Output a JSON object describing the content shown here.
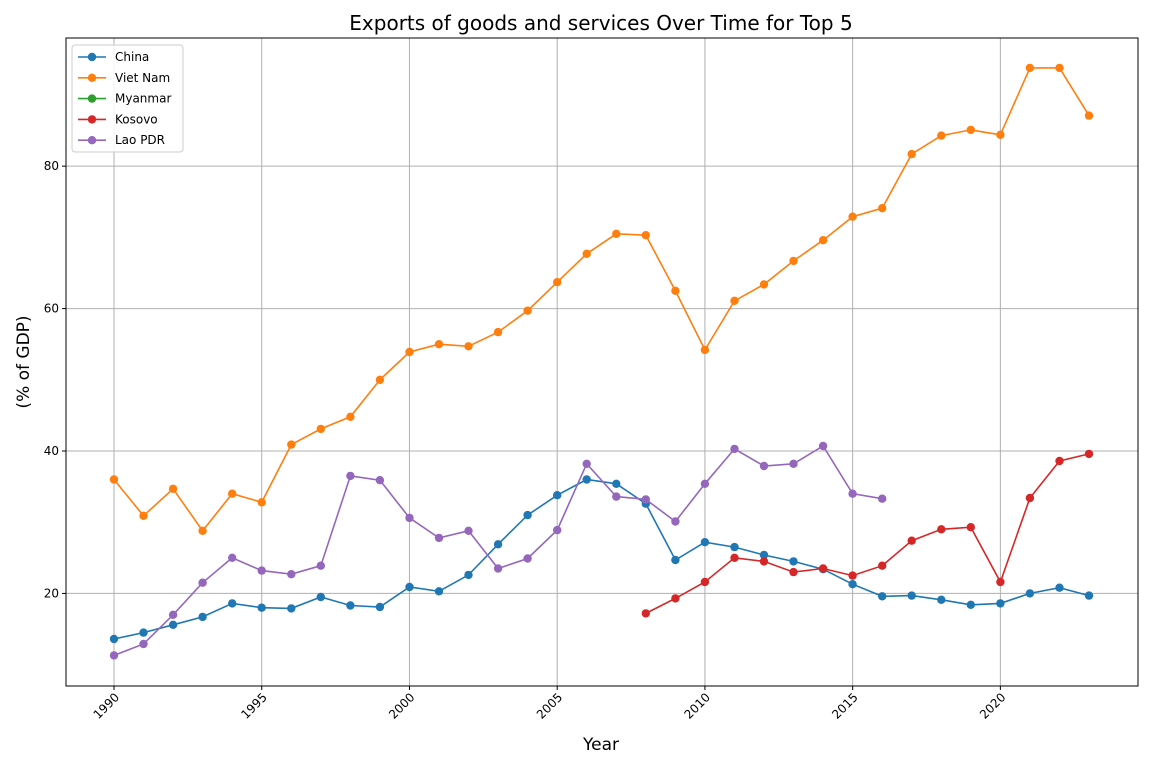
{
  "chart_data": {
    "type": "line",
    "title": "Exports of goods and services Over Time for Top 5",
    "xlabel": "Year",
    "ylabel": "(% of GDP)",
    "xlim": [
      1990,
      2023
    ],
    "ylim": [
      7,
      98
    ],
    "xticks": [
      1990,
      1995,
      2000,
      2005,
      2010,
      2015,
      2020
    ],
    "yticks": [
      20,
      40,
      60,
      80
    ],
    "grid": true,
    "legend_position": "top-left",
    "series": [
      {
        "name": "China",
        "color": "#1f77b4",
        "points": [
          [
            1990,
            13.6
          ],
          [
            1991,
            14.5
          ],
          [
            1992,
            15.6
          ],
          [
            1993,
            16.7
          ],
          [
            1994,
            18.6
          ],
          [
            1995,
            18.0
          ],
          [
            1996,
            17.9
          ],
          [
            1997,
            19.5
          ],
          [
            1998,
            18.3
          ],
          [
            1999,
            18.1
          ],
          [
            2000,
            20.9
          ],
          [
            2001,
            20.3
          ],
          [
            2002,
            22.6
          ],
          [
            2003,
            26.9
          ],
          [
            2004,
            31.0
          ],
          [
            2005,
            33.8
          ],
          [
            2006,
            36.0
          ],
          [
            2007,
            35.4
          ],
          [
            2008,
            32.6
          ],
          [
            2009,
            24.7
          ],
          [
            2010,
            27.2
          ],
          [
            2011,
            26.5
          ],
          [
            2012,
            25.4
          ],
          [
            2013,
            24.5
          ],
          [
            2014,
            23.4
          ],
          [
            2015,
            21.3
          ],
          [
            2016,
            19.6
          ],
          [
            2017,
            19.7
          ],
          [
            2018,
            19.1
          ],
          [
            2019,
            18.4
          ],
          [
            2020,
            18.6
          ],
          [
            2021,
            20.0
          ],
          [
            2022,
            20.8
          ],
          [
            2023,
            19.7
          ]
        ]
      },
      {
        "name": "Viet Nam",
        "color": "#ff7f0e",
        "points": [
          [
            1990,
            36.0
          ],
          [
            1991,
            30.9
          ],
          [
            1992,
            34.7
          ],
          [
            1993,
            28.8
          ],
          [
            1994,
            34.0
          ],
          [
            1995,
            32.8
          ],
          [
            1996,
            40.9
          ],
          [
            1997,
            43.1
          ],
          [
            1998,
            44.8
          ],
          [
            1999,
            50.0
          ],
          [
            2000,
            53.9
          ],
          [
            2001,
            55.0
          ],
          [
            2002,
            54.7
          ],
          [
            2003,
            56.7
          ],
          [
            2004,
            59.7
          ],
          [
            2005,
            63.7
          ],
          [
            2006,
            67.7
          ],
          [
            2007,
            70.5
          ],
          [
            2008,
            70.3
          ],
          [
            2009,
            62.5
          ],
          [
            2010,
            54.2
          ],
          [
            2011,
            61.1
          ],
          [
            2012,
            63.4
          ],
          [
            2013,
            66.7
          ],
          [
            2014,
            69.6
          ],
          [
            2015,
            72.9
          ],
          [
            2016,
            74.1
          ],
          [
            2017,
            81.7
          ],
          [
            2018,
            84.3
          ],
          [
            2019,
            85.1
          ],
          [
            2020,
            84.4
          ],
          [
            2021,
            93.8
          ],
          [
            2022,
            93.8
          ],
          [
            2023,
            87.1
          ]
        ]
      },
      {
        "name": "Myanmar",
        "color": "#2ca02c",
        "points": []
      },
      {
        "name": "Kosovo",
        "color": "#d62728",
        "points": [
          [
            2008,
            17.2
          ],
          [
            2009,
            19.3
          ],
          [
            2010,
            21.6
          ],
          [
            2011,
            25.0
          ],
          [
            2012,
            24.5
          ],
          [
            2013,
            23.0
          ],
          [
            2014,
            23.5
          ],
          [
            2015,
            22.5
          ],
          [
            2016,
            23.9
          ],
          [
            2017,
            27.4
          ],
          [
            2018,
            29.0
          ],
          [
            2019,
            29.3
          ],
          [
            2020,
            21.6
          ],
          [
            2021,
            33.4
          ],
          [
            2022,
            38.6
          ],
          [
            2023,
            39.6
          ]
        ]
      },
      {
        "name": "Lao PDR",
        "color": "#9467bd",
        "points": [
          [
            1990,
            11.3
          ],
          [
            1991,
            12.9
          ],
          [
            1992,
            17.0
          ],
          [
            1993,
            21.5
          ],
          [
            1994,
            25.0
          ],
          [
            1995,
            23.2
          ],
          [
            1996,
            22.7
          ],
          [
            1997,
            23.9
          ],
          [
            1998,
            36.5
          ],
          [
            1999,
            35.9
          ],
          [
            2000,
            30.6
          ],
          [
            2001,
            27.8
          ],
          [
            2002,
            28.8
          ],
          [
            2003,
            23.5
          ],
          [
            2004,
            24.9
          ],
          [
            2005,
            28.9
          ],
          [
            2006,
            38.2
          ],
          [
            2007,
            33.6
          ],
          [
            2008,
            33.2
          ],
          [
            2009,
            30.1
          ],
          [
            2010,
            35.4
          ],
          [
            2011,
            40.3
          ],
          [
            2012,
            37.9
          ],
          [
            2013,
            38.2
          ],
          [
            2014,
            40.7
          ],
          [
            2015,
            34.0
          ],
          [
            2016,
            33.3
          ]
        ]
      }
    ]
  }
}
